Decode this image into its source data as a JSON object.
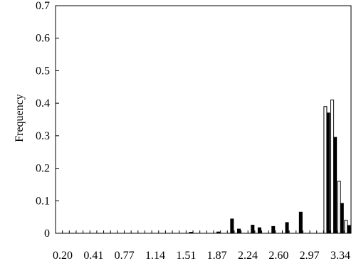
{
  "chart_data": {
    "type": "bar",
    "title": "",
    "xlabel": "",
    "ylabel": "Frequency",
    "ylim": [
      0,
      0.7
    ],
    "yticks": [
      "0",
      "0.1",
      "0.2",
      "0.3",
      "0.4",
      "0.5",
      "0.6",
      "0.7"
    ],
    "xtick_labels": [
      "0.20",
      "0.41",
      "0.77",
      "1.14",
      "1.51",
      "1.87",
      "2.24",
      "2.60",
      "2.97",
      "3.34"
    ],
    "grid": false,
    "legend": "none",
    "colors": {
      "series_open": "#ffffff",
      "series_filled": "#000000",
      "stroke": "#000000"
    },
    "series": [
      {
        "fill": "white",
        "values": [
          0,
          0,
          0,
          0,
          0,
          0,
          0,
          0,
          0,
          0,
          0,
          0,
          0,
          0,
          0,
          0,
          0,
          0,
          0,
          0,
          0,
          0,
          0,
          0,
          0,
          0,
          0,
          0,
          0,
          0,
          0,
          0,
          0,
          0,
          0,
          0,
          0,
          0,
          0,
          0.39,
          0.41,
          0.16,
          0.04
        ]
      },
      {
        "fill": "black",
        "values": [
          0,
          0,
          0,
          0,
          0,
          0,
          0,
          0,
          0,
          0,
          0,
          0,
          0,
          0,
          0,
          0,
          0,
          0,
          0,
          0.003,
          0,
          0,
          0,
          0.004,
          0,
          0.044,
          0.013,
          0,
          0.025,
          0.017,
          0,
          0.021,
          0,
          0.033,
          0,
          0.065,
          0,
          0,
          0,
          0.37,
          0.295,
          0.092,
          0.024
        ]
      }
    ]
  }
}
